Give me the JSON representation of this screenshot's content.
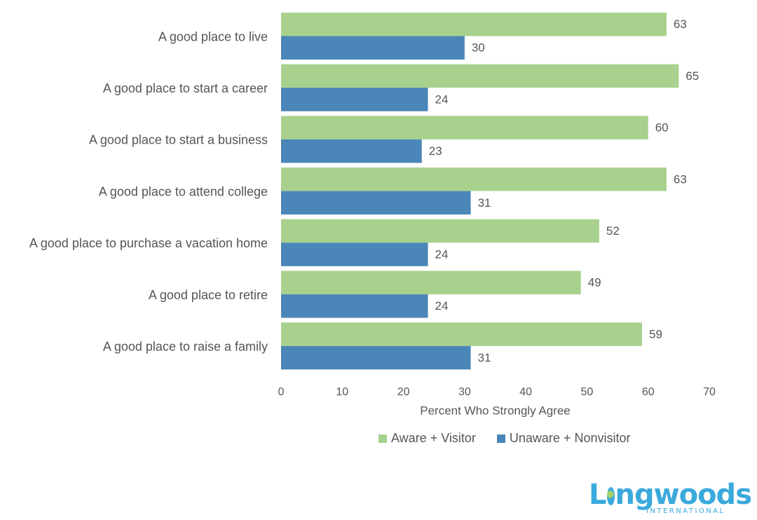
{
  "chart_data": {
    "type": "bar",
    "orientation": "horizontal",
    "categories": [
      "A good place to live",
      "A good place to start a career",
      "A good place to start a business",
      "A good place to attend college",
      "A good place to purchase a vacation home",
      "A good place to retire",
      "A good place to raise a family"
    ],
    "series": [
      {
        "name": "Aware + Visitor",
        "color": "#a9d18e",
        "values": [
          63,
          65,
          60,
          63,
          52,
          49,
          59
        ]
      },
      {
        "name": "Unaware + Nonvisitor",
        "color": "#4a86b8",
        "values": [
          30,
          24,
          23,
          31,
          24,
          24,
          31
        ]
      }
    ],
    "xlabel": "Percent Who Strongly Agree",
    "xlim": [
      0,
      70
    ],
    "xticks": [
      0,
      10,
      20,
      30,
      40,
      50,
      60,
      70
    ],
    "grid": false,
    "legend_position": "bottom"
  },
  "legend": {
    "item_1": "Aware + Visitor",
    "item_2": "Unaware + Nonvisitor"
  },
  "logo": {
    "word_start": "L",
    "word_end": "ngwoods",
    "subtitle": "INTERNATIONAL",
    "icon": "globe-icon"
  }
}
